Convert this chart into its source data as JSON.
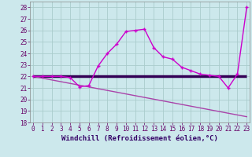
{
  "xlabel": "Windchill (Refroidissement éolien,°C)",
  "background_color": "#cce8ec",
  "grid_color": "#aacccc",
  "line1_x": [
    0,
    1,
    2,
    3,
    4,
    5,
    6,
    7,
    8,
    9,
    10,
    11,
    12,
    13,
    14,
    15,
    16,
    17,
    18,
    19,
    20,
    21,
    22,
    23
  ],
  "line1_y": [
    22,
    22,
    22,
    22,
    21.9,
    21.1,
    21.2,
    22.9,
    24.0,
    24.8,
    25.9,
    26.0,
    26.1,
    24.5,
    23.7,
    23.5,
    22.8,
    22.5,
    22.2,
    22.1,
    22.0,
    21.0,
    22.2,
    28.0
  ],
  "line2_x": [
    0,
    21,
    22,
    23
  ],
  "line2_y": [
    22,
    22,
    22,
    22
  ],
  "line3_x": [
    0,
    23
  ],
  "line3_y": [
    22,
    18.5
  ],
  "line1_color": "#cc00cc",
  "line2_color": "#330055",
  "line3_color": "#aa44aa",
  "ylim": [
    18,
    28.5
  ],
  "xlim": [
    -0.3,
    23.3
  ],
  "yticks": [
    18,
    19,
    20,
    21,
    22,
    23,
    24,
    25,
    26,
    27,
    28
  ],
  "xticks": [
    0,
    1,
    2,
    3,
    4,
    5,
    6,
    7,
    8,
    9,
    10,
    11,
    12,
    13,
    14,
    15,
    16,
    17,
    18,
    19,
    20,
    21,
    22,
    23
  ],
  "tick_fontsize": 5.5,
  "xlabel_fontsize": 6.5
}
